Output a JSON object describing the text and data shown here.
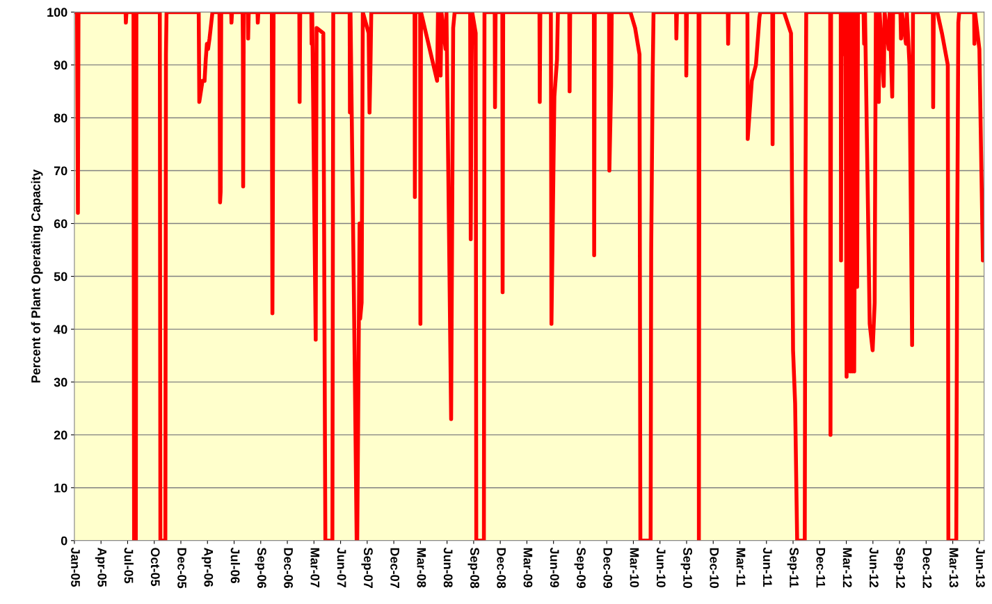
{
  "chart_data": {
    "type": "line",
    "ylabel": "Percent of Plant Operating Capacity",
    "x": [
      "2005-01-01",
      "2005-01-10",
      "2005-01-13",
      "2005-01-15",
      "2005-06-25",
      "2005-06-26",
      "2005-06-28",
      "2005-07-22",
      "2005-07-24",
      "2005-07-30",
      "2005-08-01",
      "2005-10-20",
      "2005-10-22",
      "2005-11-08",
      "2005-11-10",
      "2005-11-12",
      "2006-03-02",
      "2006-03-04",
      "2006-03-15",
      "2006-03-22",
      "2006-03-26",
      "2006-03-30",
      "2006-04-03",
      "2006-04-08",
      "2006-04-12",
      "2006-04-18",
      "2006-05-12",
      "2006-05-14",
      "2006-05-16",
      "2006-05-18",
      "2006-06-21",
      "2006-06-22",
      "2006-06-24",
      "2006-07-30",
      "2006-07-31",
      "2006-08-01",
      "2006-08-03",
      "2006-08-17",
      "2006-08-18",
      "2006-08-20",
      "2006-09-19",
      "2006-09-20",
      "2006-09-22",
      "2006-11-07",
      "2006-11-08",
      "2006-11-09",
      "2006-11-11",
      "2006-11-13",
      "2007-02-09",
      "2007-02-10",
      "2007-02-12",
      "2007-03-22",
      "2007-03-23",
      "2007-03-25",
      "2007-04-06",
      "2007-04-09",
      "2007-05-02",
      "2007-05-09",
      "2007-06-02",
      "2007-06-05",
      "2007-07-31",
      "2007-08-01",
      "2007-08-03",
      "2007-08-17",
      "2007-08-24",
      "2007-08-26",
      "2007-09-03",
      "2007-09-05",
      "2007-09-10",
      "2007-09-14",
      "2007-10-04",
      "2007-10-07",
      "2007-10-10",
      "2007-10-13",
      "2008-03-09",
      "2008-03-10",
      "2008-03-12",
      "2008-03-28",
      "2008-03-29",
      "2008-03-31",
      "2008-05-25",
      "2008-05-28",
      "2008-06-06",
      "2008-06-09",
      "2008-06-23",
      "2008-06-26",
      "2008-07-12",
      "2008-07-15",
      "2008-07-19",
      "2008-07-24",
      "2008-09-15",
      "2008-09-17",
      "2008-09-20",
      "2008-09-22",
      "2008-10-04",
      "2008-10-06",
      "2008-11-01",
      "2008-11-03",
      "2008-12-08",
      "2008-12-09",
      "2008-12-11",
      "2009-01-03",
      "2009-01-04",
      "2009-01-06",
      "2009-05-10",
      "2009-05-11",
      "2009-05-13",
      "2009-06-18",
      "2009-06-20",
      "2009-06-30",
      "2009-07-09",
      "2009-07-12",
      "2009-08-20",
      "2009-08-21",
      "2009-08-23",
      "2009-11-12",
      "2009-11-13",
      "2009-11-15",
      "2010-01-03",
      "2010-01-04",
      "2010-01-10",
      "2010-01-12",
      "2010-03-17",
      "2010-04-02",
      "2010-04-17",
      "2010-04-20",
      "2010-05-25",
      "2010-05-27",
      "2010-06-01",
      "2010-06-04",
      "2010-08-20",
      "2010-08-21",
      "2010-08-23",
      "2010-09-23",
      "2010-09-24",
      "2010-09-26",
      "2010-11-05",
      "2010-11-06",
      "2010-11-08",
      "2011-02-13",
      "2011-02-14",
      "2011-02-16",
      "2011-04-21",
      "2011-04-22",
      "2011-05-06",
      "2011-05-20",
      "2011-06-01",
      "2011-06-04",
      "2011-07-15",
      "2011-07-16",
      "2011-07-18",
      "2011-08-24",
      "2011-09-17",
      "2011-09-24",
      "2011-10-01",
      "2011-10-08",
      "2011-11-03",
      "2011-11-05",
      "2011-11-08",
      "2012-01-29",
      "2012-01-30",
      "2012-02-01",
      "2012-03-05",
      "2012-03-06",
      "2012-03-08",
      "2012-03-16",
      "2012-03-18",
      "2012-03-21",
      "2012-03-25",
      "2012-03-30",
      "2012-04-06",
      "2012-04-09",
      "2012-04-13",
      "2012-04-16",
      "2012-04-20",
      "2012-04-25",
      "2012-04-30",
      "2012-05-03",
      "2012-05-22",
      "2012-05-24",
      "2012-05-27",
      "2012-06-12",
      "2012-06-22",
      "2012-06-29",
      "2012-07-03",
      "2012-07-11",
      "2012-07-13",
      "2012-07-16",
      "2012-07-30",
      "2012-08-02",
      "2012-08-16",
      "2012-08-19",
      "2012-08-28",
      "2012-08-31",
      "2012-09-25",
      "2012-09-27",
      "2012-09-30",
      "2012-10-14",
      "2012-10-17",
      "2012-10-26",
      "2012-11-04",
      "2012-11-07",
      "2013-01-14",
      "2013-01-15",
      "2013-01-17",
      "2013-01-29",
      "2013-02-14",
      "2013-03-06",
      "2013-03-08",
      "2013-04-04",
      "2013-04-07",
      "2013-04-11",
      "2013-04-14",
      "2013-06-04",
      "2013-06-05",
      "2013-06-07",
      "2013-06-22",
      "2013-07-04"
    ],
    "series": [
      {
        "color": "#ff0000",
        "values": [
          100,
          100,
          62,
          100,
          100,
          98,
          100,
          100,
          0,
          0,
          100,
          100,
          0,
          0,
          92,
          100,
          100,
          83,
          87,
          87,
          91,
          94,
          93,
          95,
          97,
          100,
          100,
          64,
          66,
          100,
          100,
          98,
          100,
          100,
          94,
          67,
          100,
          100,
          95,
          100,
          100,
          98,
          100,
          100,
          66,
          43,
          71,
          100,
          100,
          83,
          100,
          100,
          94,
          100,
          38,
          97,
          96,
          0,
          0,
          100,
          100,
          81,
          100,
          35,
          0,
          0,
          60,
          42,
          45,
          100,
          96,
          81,
          89,
          100,
          100,
          65,
          100,
          100,
          41,
          100,
          87,
          100,
          88,
          100,
          93,
          100,
          23,
          55,
          97,
          100,
          100,
          57,
          90,
          100,
          96,
          0,
          0,
          100,
          100,
          82,
          100,
          100,
          47,
          100,
          100,
          83,
          100,
          100,
          41,
          84,
          91,
          100,
          100,
          85,
          100,
          100,
          54,
          100,
          100,
          70,
          86,
          100,
          100,
          97,
          92,
          0,
          0,
          55,
          88,
          100,
          100,
          95,
          100,
          100,
          88,
          100,
          100,
          0,
          100,
          100,
          94,
          100,
          100,
          76,
          87,
          90,
          99,
          100,
          100,
          75,
          100,
          100,
          96,
          36,
          26,
          0,
          0,
          61,
          100,
          100,
          20,
          100,
          100,
          53,
          100,
          100,
          92,
          100,
          31,
          100,
          32,
          100,
          32,
          100,
          32,
          100,
          48,
          100,
          100,
          94,
          100,
          41,
          36,
          45,
          100,
          100,
          83,
          100,
          86,
          100,
          93,
          100,
          84,
          100,
          100,
          95,
          100,
          94,
          100,
          90,
          37,
          100,
          100,
          82,
          100,
          100,
          96,
          90,
          0,
          0,
          55,
          98,
          100,
          100,
          94,
          100,
          93,
          53
        ]
      }
    ],
    "xlim": [
      "2005-01-01",
      "2013-07-08"
    ],
    "xticks": [
      {
        "value": "2005-01-01",
        "label": "Jan-05"
      },
      {
        "value": "2005-04-02",
        "label": "Apr-05"
      },
      {
        "value": "2005-07-02",
        "label": "Jul-05"
      },
      {
        "value": "2005-10-01",
        "label": "Oct-05"
      },
      {
        "value": "2005-12-31",
        "label": "Dec-05"
      },
      {
        "value": "2006-04-01",
        "label": "Apr-06"
      },
      {
        "value": "2006-07-01",
        "label": "Jul-06"
      },
      {
        "value": "2006-09-30",
        "label": "Sep-06"
      },
      {
        "value": "2006-12-30",
        "label": "Dec-06"
      },
      {
        "value": "2007-03-31",
        "label": "Mar-07"
      },
      {
        "value": "2007-06-30",
        "label": "Jun-07"
      },
      {
        "value": "2007-09-29",
        "label": "Sep-07"
      },
      {
        "value": "2007-12-29",
        "label": "Dec-07"
      },
      {
        "value": "2008-03-29",
        "label": "Mar-08"
      },
      {
        "value": "2008-06-28",
        "label": "Jun-08"
      },
      {
        "value": "2008-09-27",
        "label": "Sep-08"
      },
      {
        "value": "2008-12-27",
        "label": "Dec-08"
      },
      {
        "value": "2009-03-28",
        "label": "Mar-09"
      },
      {
        "value": "2009-06-27",
        "label": "Jun-09"
      },
      {
        "value": "2009-09-26",
        "label": "Sep-09"
      },
      {
        "value": "2009-12-26",
        "label": "Dec-09"
      },
      {
        "value": "2010-03-27",
        "label": "Mar-10"
      },
      {
        "value": "2010-06-26",
        "label": "Jun-10"
      },
      {
        "value": "2010-09-25",
        "label": "Sep-10"
      },
      {
        "value": "2010-12-25",
        "label": "Dec-10"
      },
      {
        "value": "2011-03-26",
        "label": "Mar-11"
      },
      {
        "value": "2011-06-25",
        "label": "Jun-11"
      },
      {
        "value": "2011-09-24",
        "label": "Sep-11"
      },
      {
        "value": "2011-12-24",
        "label": "Dec-11"
      },
      {
        "value": "2012-03-24",
        "label": "Mar-12"
      },
      {
        "value": "2012-06-23",
        "label": "Jun-12"
      },
      {
        "value": "2012-09-22",
        "label": "Sep-12"
      },
      {
        "value": "2012-12-22",
        "label": "Dec-12"
      },
      {
        "value": "2013-03-23",
        "label": "Mar-13"
      },
      {
        "value": "2013-06-22",
        "label": "Jun-13"
      }
    ],
    "ylim": [
      0,
      100
    ],
    "yticks": [
      0,
      10,
      20,
      30,
      40,
      50,
      60,
      70,
      80,
      90,
      100
    ],
    "grid": "y",
    "marker": "none",
    "line_style": "solid"
  }
}
